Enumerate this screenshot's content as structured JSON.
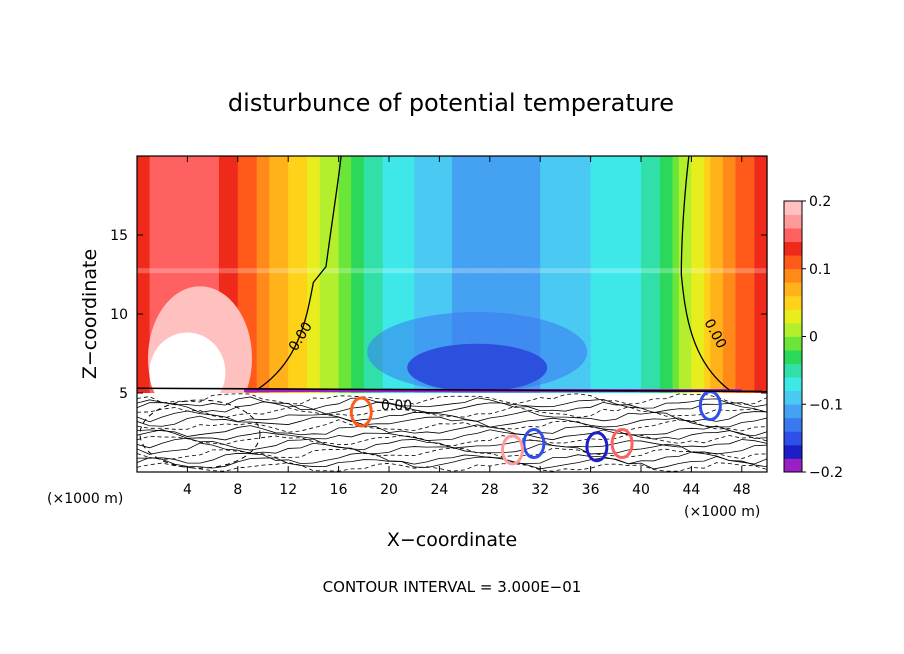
{
  "chart_data": {
    "type": "heatmap",
    "title": "disturbunce of potential temperature",
    "xlabel": "X−coordinate",
    "ylabel": "Z−coordinate",
    "x_unit": "(×1000 m)",
    "x_unit_right": "(×1000 m)",
    "xlim": [
      0,
      50
    ],
    "ylim": [
      0,
      20
    ],
    "x_ticks": [
      4,
      8,
      12,
      16,
      20,
      24,
      28,
      32,
      36,
      40,
      44,
      48
    ],
    "y_ticks": [
      5,
      10,
      15
    ],
    "contour_label": "0.00",
    "footer": "CONTOUR INTERVAL = 3.000E−01",
    "colorbar": {
      "vmin": -0.2,
      "vmax": 0.2,
      "ticks": [
        {
          "value": 0.2,
          "label": "0.2"
        },
        {
          "value": 0.1,
          "label": "0.1"
        },
        {
          "value": 0.0,
          "label": "0"
        },
        {
          "value": -0.1,
          "label": "−0.1"
        },
        {
          "value": -0.2,
          "label": "−0.2"
        }
      ],
      "colors": [
        "#9b1fc3",
        "#1e1ec8",
        "#2e4fe8",
        "#3a78f0",
        "#45a2f2",
        "#4ac9f2",
        "#3ee8e8",
        "#30e0a8",
        "#2bd85a",
        "#6ae63a",
        "#b4ef2e",
        "#e8ee1e",
        "#ffd21a",
        "#ffb21a",
        "#ff8a1a",
        "#ff5a1a",
        "#f02a1a",
        "#ff6060",
        "#ff9a9a",
        "#ffc0c0"
      ]
    },
    "columns_x": [
      0,
      2,
      4,
      6,
      8,
      10,
      12,
      14,
      16,
      18,
      20,
      22,
      24,
      26,
      28,
      30,
      32,
      34,
      36,
      38,
      40,
      42,
      44,
      46,
      48,
      50
    ],
    "columns_value": [
      0.13,
      0.15,
      0.16,
      0.15,
      0.12,
      0.09,
      0.06,
      0.03,
      0.0,
      -0.04,
      -0.07,
      -0.08,
      -0.09,
      -0.11,
      -0.12,
      -0.11,
      -0.1,
      -0.09,
      -0.08,
      -0.07,
      -0.06,
      -0.03,
      0.02,
      0.07,
      0.11,
      0.13
    ],
    "upper_layer_z": [
      5,
      20
    ],
    "lower_layer_z": [
      0,
      5
    ]
  }
}
